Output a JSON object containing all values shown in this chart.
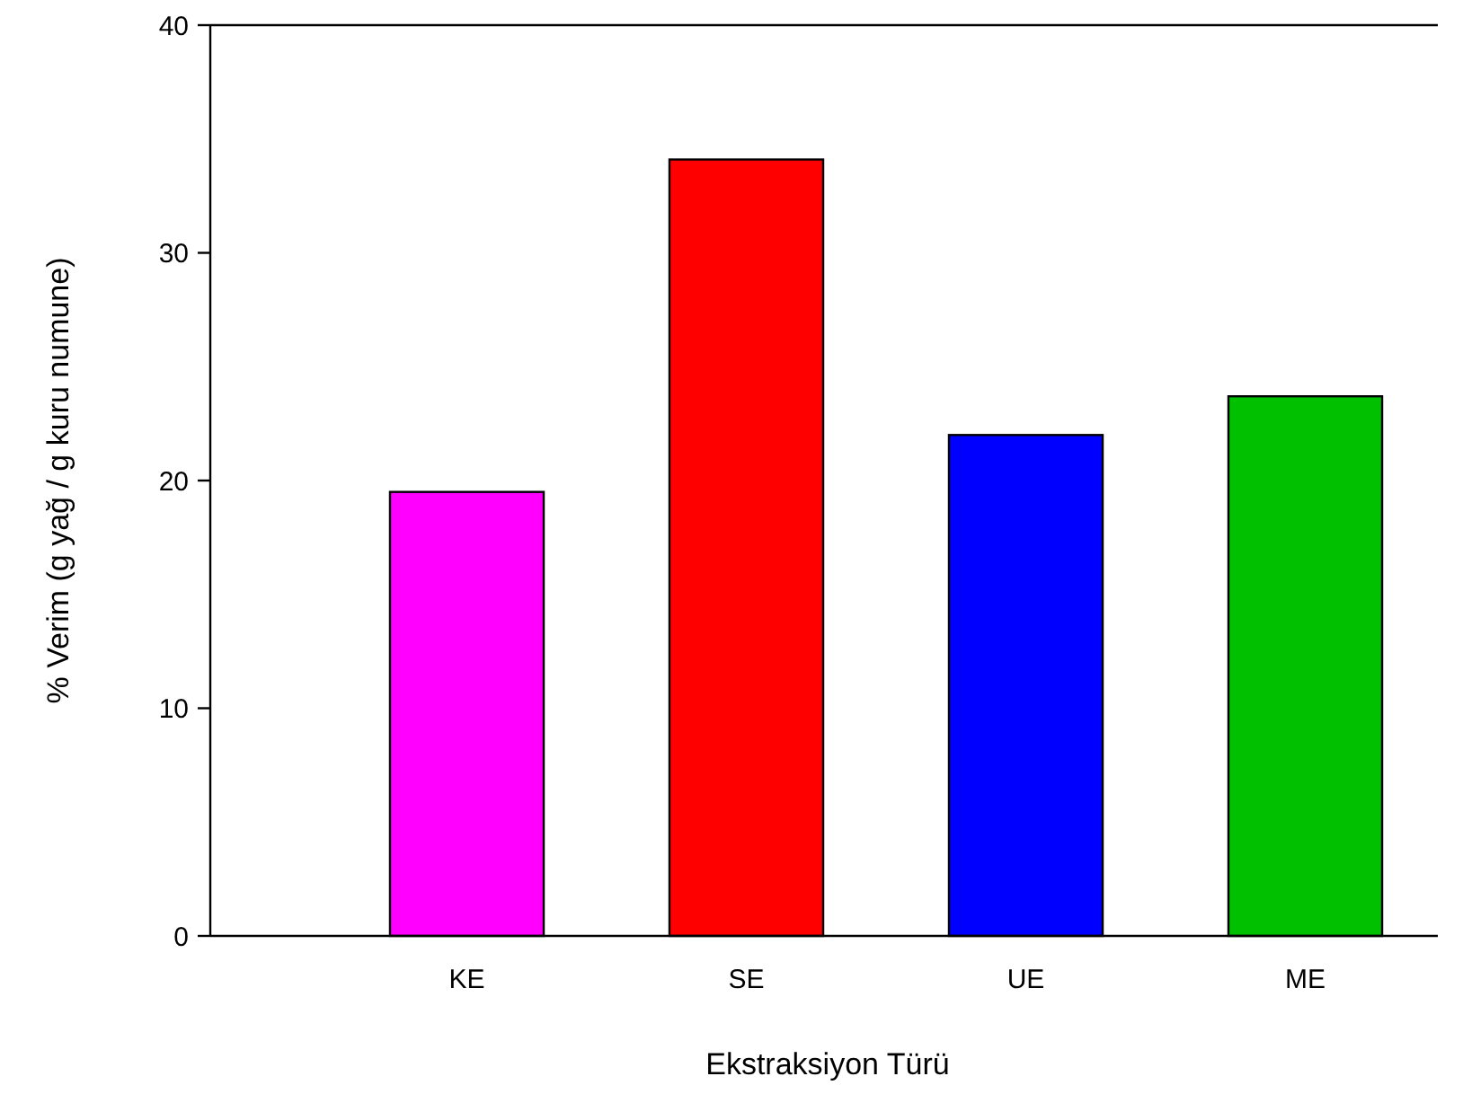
{
  "chart_data": {
    "type": "bar",
    "xlabel": "Ekstraksiyon Türü",
    "ylabel": "% Verim (g yağ / g kuru numune)",
    "categories": [
      "KE",
      "SE",
      "UE",
      "ME"
    ],
    "values": [
      19.5,
      34.1,
      22.0,
      23.7
    ],
    "colors": [
      "#ff00ff",
      "#ff0000",
      "#0000ff",
      "#00c000"
    ],
    "ylim": [
      0,
      40
    ],
    "yticks": [
      0,
      10,
      20,
      30,
      40
    ],
    "grid": false
  }
}
